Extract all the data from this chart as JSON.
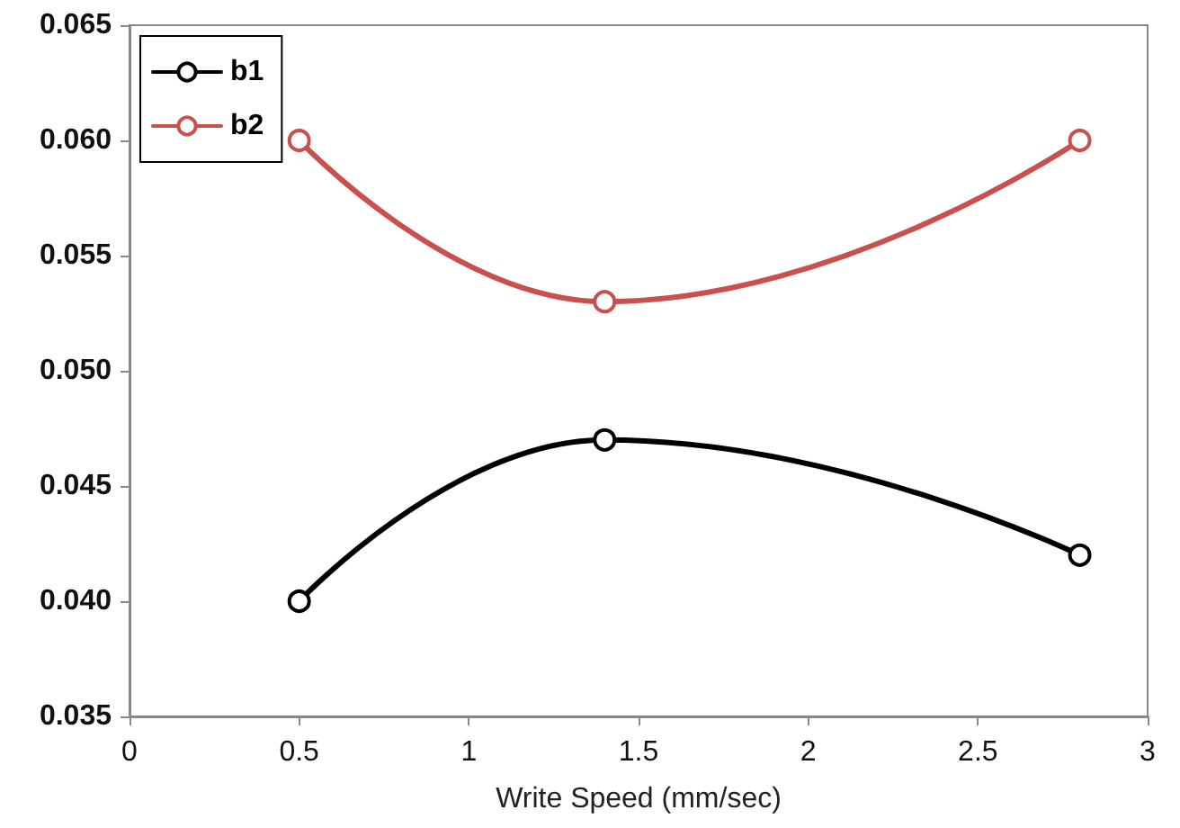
{
  "chart_data": {
    "type": "line",
    "xlabel": "Write Speed (mm/sec)",
    "x": [
      0.5,
      1.4,
      2.8
    ],
    "series": [
      {
        "name": "b1",
        "color": "#000000",
        "values": [
          0.04,
          0.047,
          0.042
        ]
      },
      {
        "name": "b2",
        "color": "#c9504d",
        "values": [
          0.06,
          0.053,
          0.06
        ]
      }
    ],
    "xlim": [
      0,
      3
    ],
    "xticks": [
      0,
      0.5,
      1,
      1.5,
      2,
      2.5,
      3
    ],
    "ylim": [
      0.035,
      0.065
    ],
    "yticks": [
      {
        "value": 0.035,
        "label": "0.035"
      },
      {
        "value": 0.04,
        "label": "0.040"
      },
      {
        "value": 0.045,
        "label": "0.045"
      },
      {
        "value": 0.05,
        "label": "0.050"
      },
      {
        "value": 0.055,
        "label": "0.055"
      },
      {
        "value": 0.06,
        "label": "0.060"
      },
      {
        "value": 0.065,
        "label": "0.065"
      }
    ],
    "grid": false,
    "legend": "top left",
    "marker": "circle",
    "line_style": "solid"
  }
}
